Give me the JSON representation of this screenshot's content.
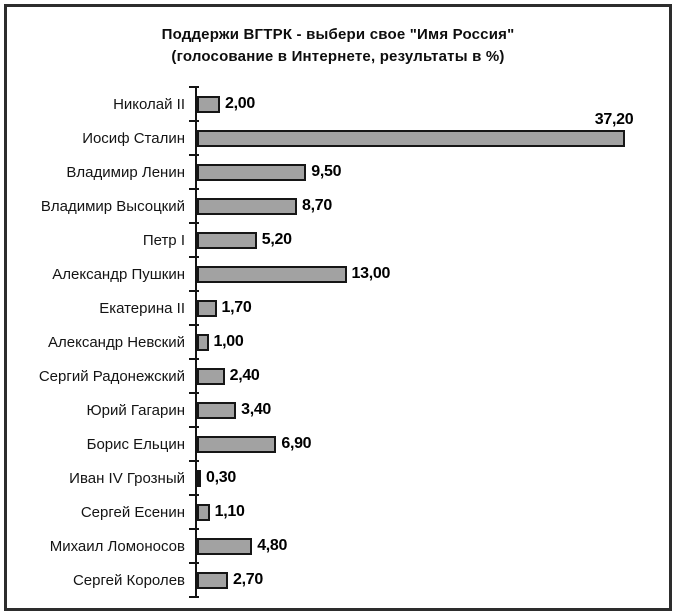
{
  "window": {
    "background": "#ffffff",
    "frame_border_color": "#2d2d2d"
  },
  "chart_data": {
    "type": "bar",
    "orientation": "horizontal",
    "title": "Поддержи ВГТРК - выбери свое \"Имя Россия\"",
    "subtitle": "(голосование в Интернете, результаты в %)",
    "categories": [
      "Николай II",
      "Иосиф Сталин",
      "Владимир Ленин",
      "Владимир Высоцкий",
      "Петр I",
      "Александр Пушкин",
      "Екатерина II",
      "Александр Невский",
      "Сергий Радонежский",
      "Юрий Гагарин",
      "Борис Ельцин",
      "Иван IV Грозный",
      "Сергей Есенин",
      "Михаил Ломоносов",
      "Сергей Королев"
    ],
    "values": [
      2.0,
      37.2,
      9.5,
      8.7,
      5.2,
      13.0,
      1.7,
      1.0,
      2.4,
      3.4,
      6.9,
      0.3,
      1.1,
      4.8,
      2.7
    ],
    "value_labels": [
      "2,00",
      "37,20",
      "9,50",
      "8,70",
      "5,20",
      "13,00",
      "1,70",
      "1,00",
      "2,40",
      "3,40",
      "6,90",
      "0,30",
      "1,10",
      "4,80",
      "2,70"
    ],
    "xlabel": "",
    "ylabel": "",
    "xlim": [
      0,
      41
    ],
    "grid": false,
    "legend": false,
    "bar_fill_color": "#a2a2a2",
    "bar_border_color": "#161616",
    "axis_color": "#141414"
  }
}
